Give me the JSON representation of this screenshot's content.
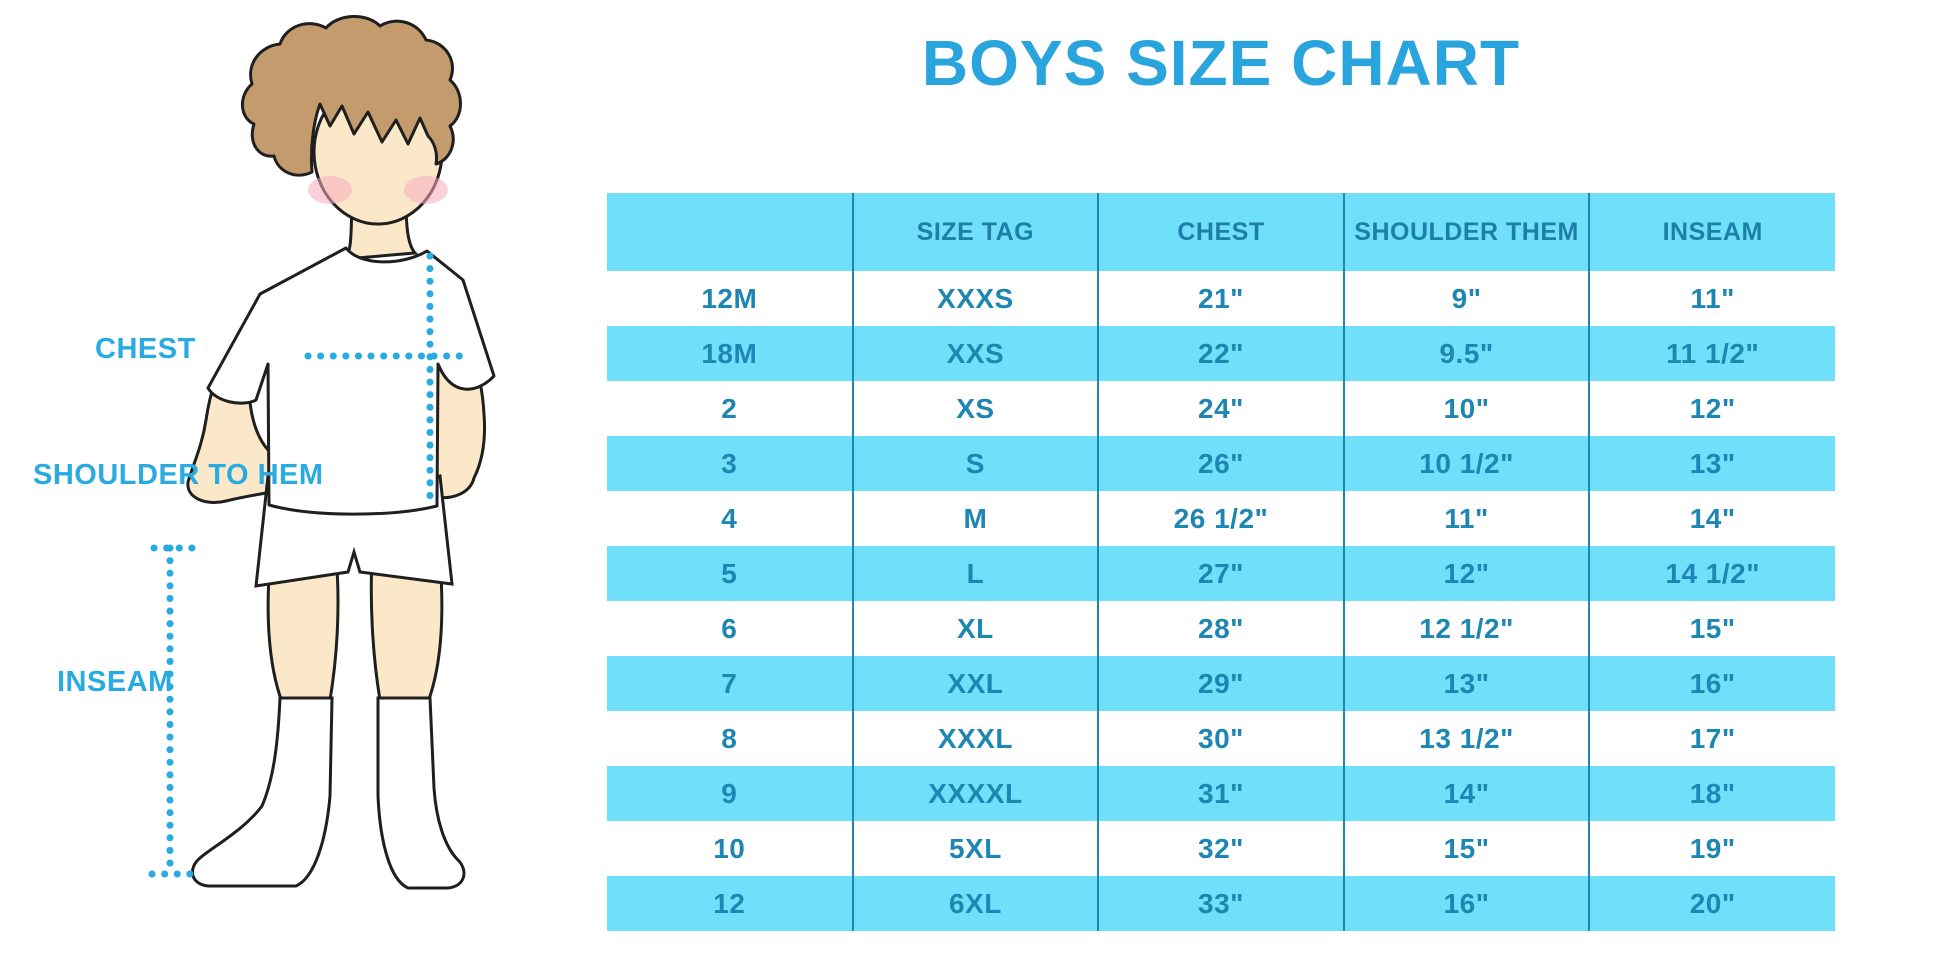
{
  "title": "BOYS SIZE CHART",
  "figure": {
    "chest_label": "CHEST",
    "shoulder_to_hem_label": "SHOULDER TO HEM",
    "inseam_label": "INSEAM",
    "illustration": "faceless boy with brown hair wearing white t-shirt, white shorts and white knee socks, with dotted measurement guide lines"
  },
  "chart_data": {
    "type": "table",
    "title": "BOYS SIZE CHART",
    "headers": [
      "",
      "SIZE TAG",
      "CHEST",
      "SHOULDER THEM",
      "INSEAM"
    ],
    "rows": [
      [
        "12M",
        "XXXS",
        "21\"",
        "9\"",
        "11\""
      ],
      [
        "18M",
        "XXS",
        "22\"",
        "9.5\"",
        "11 1/2\""
      ],
      [
        "2",
        "XS",
        "24\"",
        "10\"",
        "12\""
      ],
      [
        "3",
        "S",
        "26\"",
        "10 1/2\"",
        "13\""
      ],
      [
        "4",
        "M",
        "26 1/2\"",
        "11\"",
        "14\""
      ],
      [
        "5",
        "L",
        "27\"",
        "12\"",
        "14 1/2\""
      ],
      [
        "6",
        "XL",
        "28\"",
        "12 1/2\"",
        "15\""
      ],
      [
        "7",
        "XXL",
        "29\"",
        "13\"",
        "16\""
      ],
      [
        "8",
        "XXXL",
        "30\"",
        "13 1/2\"",
        "17\""
      ],
      [
        "9",
        "XXXXL",
        "31\"",
        "14\"",
        "18\""
      ],
      [
        "10",
        "5XL",
        "32\"",
        "15\"",
        "19\""
      ],
      [
        "12",
        "6XL",
        "33\"",
        "16\"",
        "20\""
      ]
    ],
    "row_striping": "white / cyan alternating, header cyan",
    "legend_position": "none",
    "grid": "vertical dividers only"
  },
  "colors": {
    "accent_blue": "#29a4dd",
    "row_blue": "#70dff9",
    "table_text_blue": "#1e86b2",
    "header_text_blue": "#1b7fa8",
    "divider_blue": "#1f86b4",
    "dotted_line_blue": "#29abe2",
    "skin": "#fbe8c9",
    "hair_brown": "#c49b6d",
    "blush_pink": "#f6abbe"
  }
}
